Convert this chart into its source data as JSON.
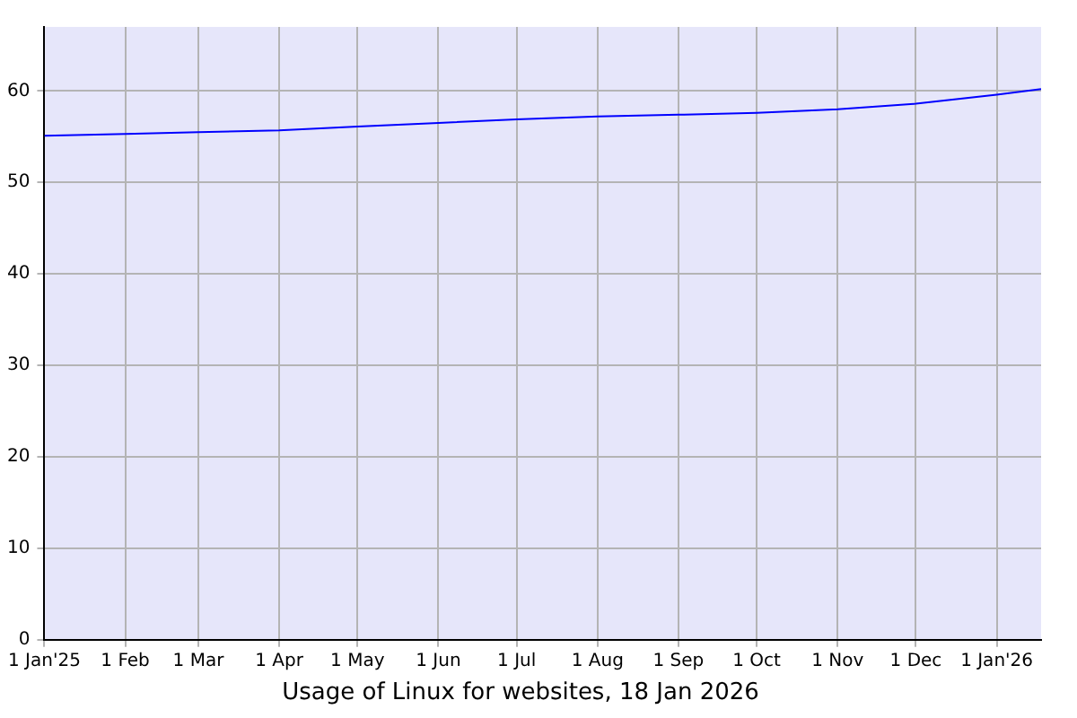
{
  "chart_data": {
    "type": "line",
    "title": "Usage of Linux for websites, 18 Jan 2026",
    "x": [
      "2025-01-01",
      "2025-02-01",
      "2025-03-01",
      "2025-04-01",
      "2025-05-01",
      "2025-06-01",
      "2025-07-01",
      "2025-08-01",
      "2025-09-01",
      "2025-10-01",
      "2025-11-01",
      "2025-12-01",
      "2026-01-01",
      "2026-01-18"
    ],
    "series": [
      {
        "color": "#0000ff",
        "values": [
          55.1,
          55.3,
          55.5,
          55.7,
          56.1,
          56.5,
          56.9,
          57.2,
          57.4,
          57.6,
          58.0,
          58.6,
          59.6,
          60.2
        ]
      }
    ],
    "xlim": [
      "2025-01-01",
      "2026-01-18"
    ],
    "xticks": [
      {
        "value": "2025-01-01",
        "label": "1 Jan'25"
      },
      {
        "value": "2025-02-01",
        "label": "1 Feb"
      },
      {
        "value": "2025-03-01",
        "label": "1 Mar"
      },
      {
        "value": "2025-04-01",
        "label": "1 Apr"
      },
      {
        "value": "2025-05-01",
        "label": "1 May"
      },
      {
        "value": "2025-06-01",
        "label": "1 Jun"
      },
      {
        "value": "2025-07-01",
        "label": "1 Jul"
      },
      {
        "value": "2025-08-01",
        "label": "1 Aug"
      },
      {
        "value": "2025-09-01",
        "label": "1 Sep"
      },
      {
        "value": "2025-10-01",
        "label": "1 Oct"
      },
      {
        "value": "2025-11-01",
        "label": "1 Nov"
      },
      {
        "value": "2025-12-01",
        "label": "1 Dec"
      },
      {
        "value": "2026-01-01",
        "label": "1 Jan'26"
      }
    ],
    "ylim": [
      0,
      67
    ],
    "yticks": [
      0,
      10,
      20,
      30,
      40,
      50,
      60
    ],
    "grid": true,
    "legend": false,
    "marker": "none",
    "line_style": "solid"
  }
}
